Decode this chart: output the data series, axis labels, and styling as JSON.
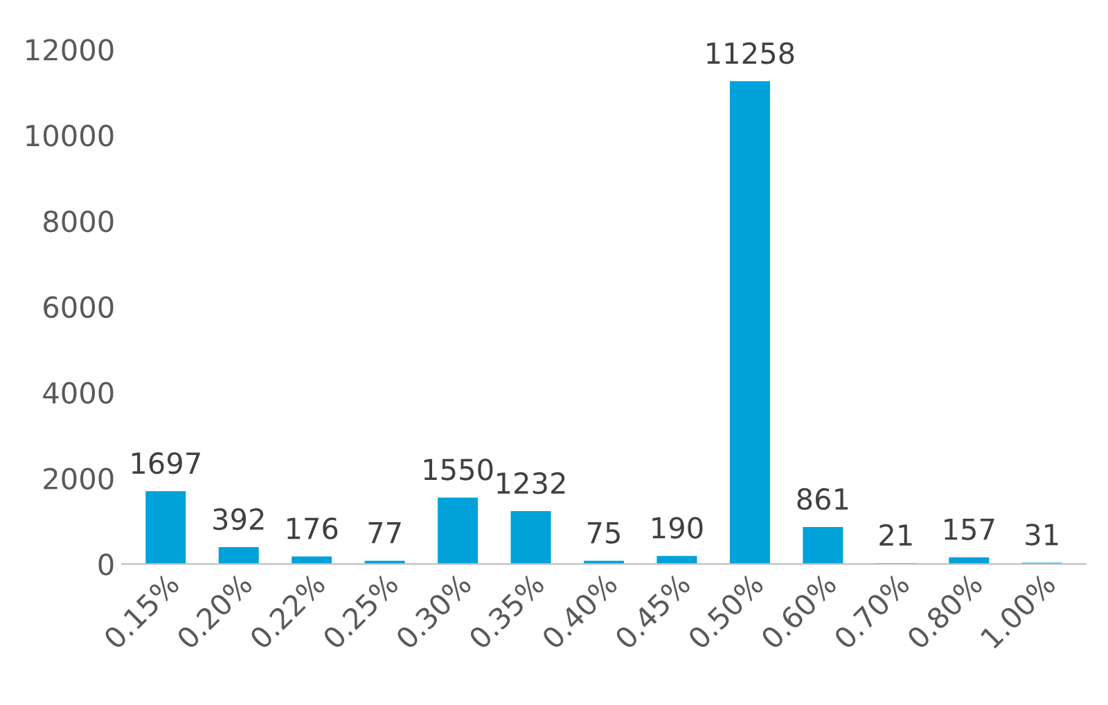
{
  "chart_data": {
    "type": "bar",
    "categories": [
      "0.15%",
      "0.20%",
      "0.22%",
      "0.25%",
      "0.30%",
      "0.35%",
      "0.40%",
      "0.45%",
      "0.50%",
      "0.60%",
      "0.70%",
      "0.80%",
      "1.00%"
    ],
    "values": [
      1697,
      392,
      176,
      77,
      1550,
      1232,
      75,
      190,
      11258,
      861,
      21,
      157,
      31
    ],
    "color": "#00a2d9",
    "ylim": [
      0,
      12000
    ],
    "yticks": [
      0,
      2000,
      4000,
      6000,
      8000,
      10000,
      12000
    ],
    "data_labels": true,
    "grid": false,
    "legend": false
  }
}
